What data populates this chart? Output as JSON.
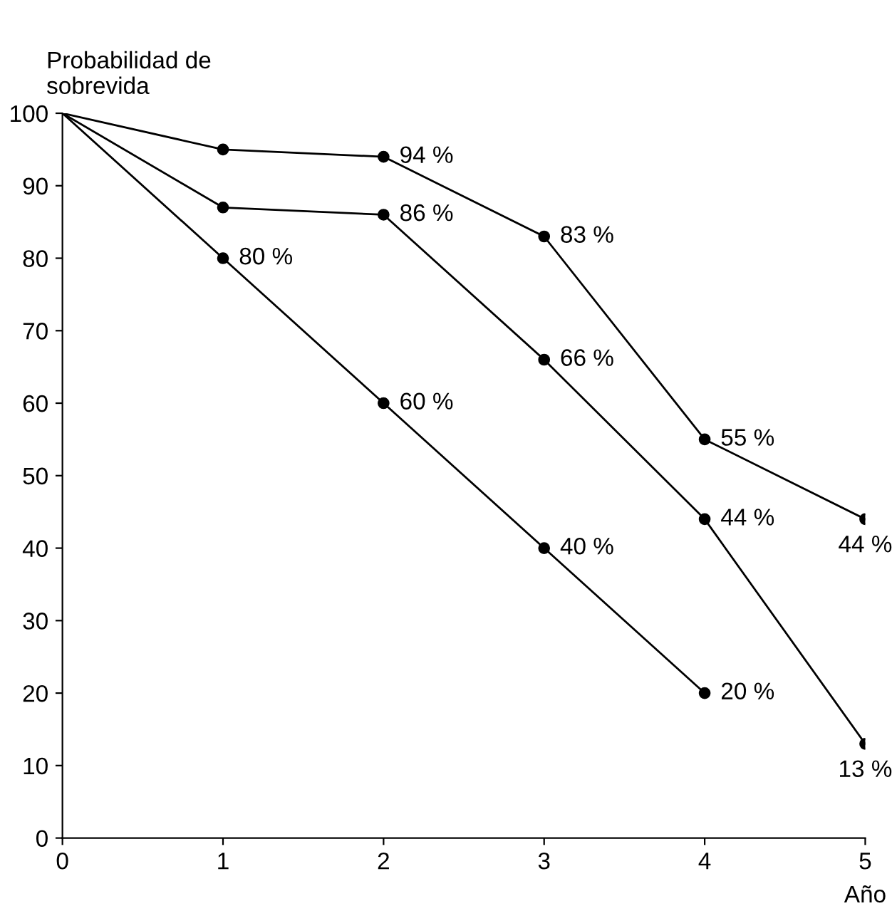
{
  "chart_data": {
    "type": "line",
    "ylabel": "Probabilidad de\nsobrevida",
    "xlabel": "Año",
    "x": [
      0,
      1,
      2,
      3,
      4,
      5
    ],
    "series": [
      {
        "color": "#000000",
        "values": [
          100,
          95,
          94,
          83,
          55,
          44
        ],
        "value_labels": [
          null,
          null,
          "94 %",
          "83 %",
          "55 %",
          "44 %"
        ]
      },
      {
        "color": "#000000",
        "values": [
          100,
          87,
          86,
          66,
          44,
          13
        ],
        "value_labels": [
          null,
          null,
          "86 %",
          "66 %",
          "44 %",
          "13 %"
        ]
      },
      {
        "color": "#000000",
        "values": [
          100,
          80,
          60,
          40,
          20,
          null
        ],
        "value_labels": [
          null,
          "80 %",
          "60 %",
          "40 %",
          "20 %",
          null
        ]
      }
    ],
    "xlim": [
      0,
      5
    ],
    "ylim": [
      0,
      100
    ],
    "xticks": [
      0,
      1,
      2,
      3,
      4,
      5
    ],
    "yticks": [
      0,
      10,
      20,
      30,
      40,
      50,
      60,
      70,
      80,
      90,
      100
    ],
    "marker": "circle",
    "line_style": "solid",
    "grid": false,
    "legend": false
  }
}
